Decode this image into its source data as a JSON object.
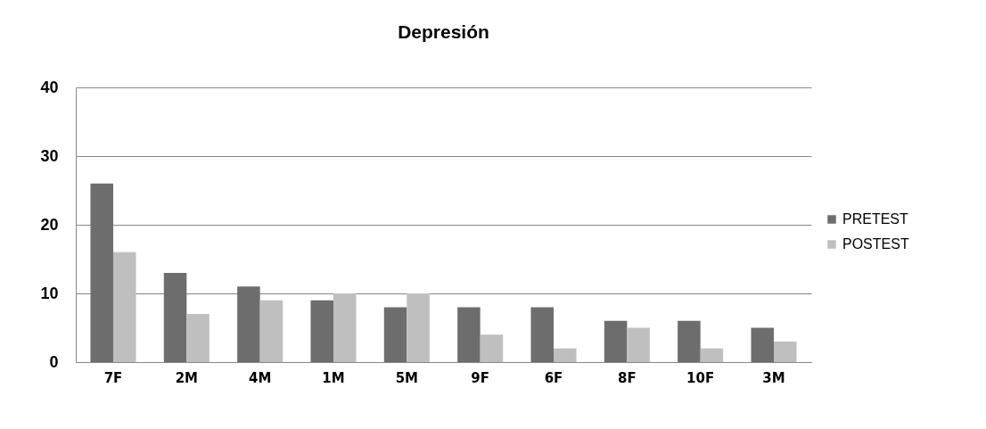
{
  "chart_data": {
    "type": "bar",
    "title": "Depresión",
    "categories": [
      "7F",
      "2M",
      "4M",
      "1M",
      "5M",
      "9F",
      "6F",
      "8F",
      "10F",
      "3M"
    ],
    "series": [
      {
        "name": "PRETEST",
        "color": "#6d6d6d",
        "values": [
          26,
          13,
          11,
          9,
          8,
          8,
          8,
          6,
          6,
          5
        ]
      },
      {
        "name": "POSTEST",
        "color": "#bfbfbf",
        "values": [
          16,
          7,
          9,
          10,
          10,
          4,
          2,
          5,
          2,
          3
        ]
      }
    ],
    "ylim": [
      0,
      40
    ],
    "yticks": [
      0,
      10,
      20,
      30,
      40
    ],
    "grid": "y",
    "legend": "right"
  }
}
